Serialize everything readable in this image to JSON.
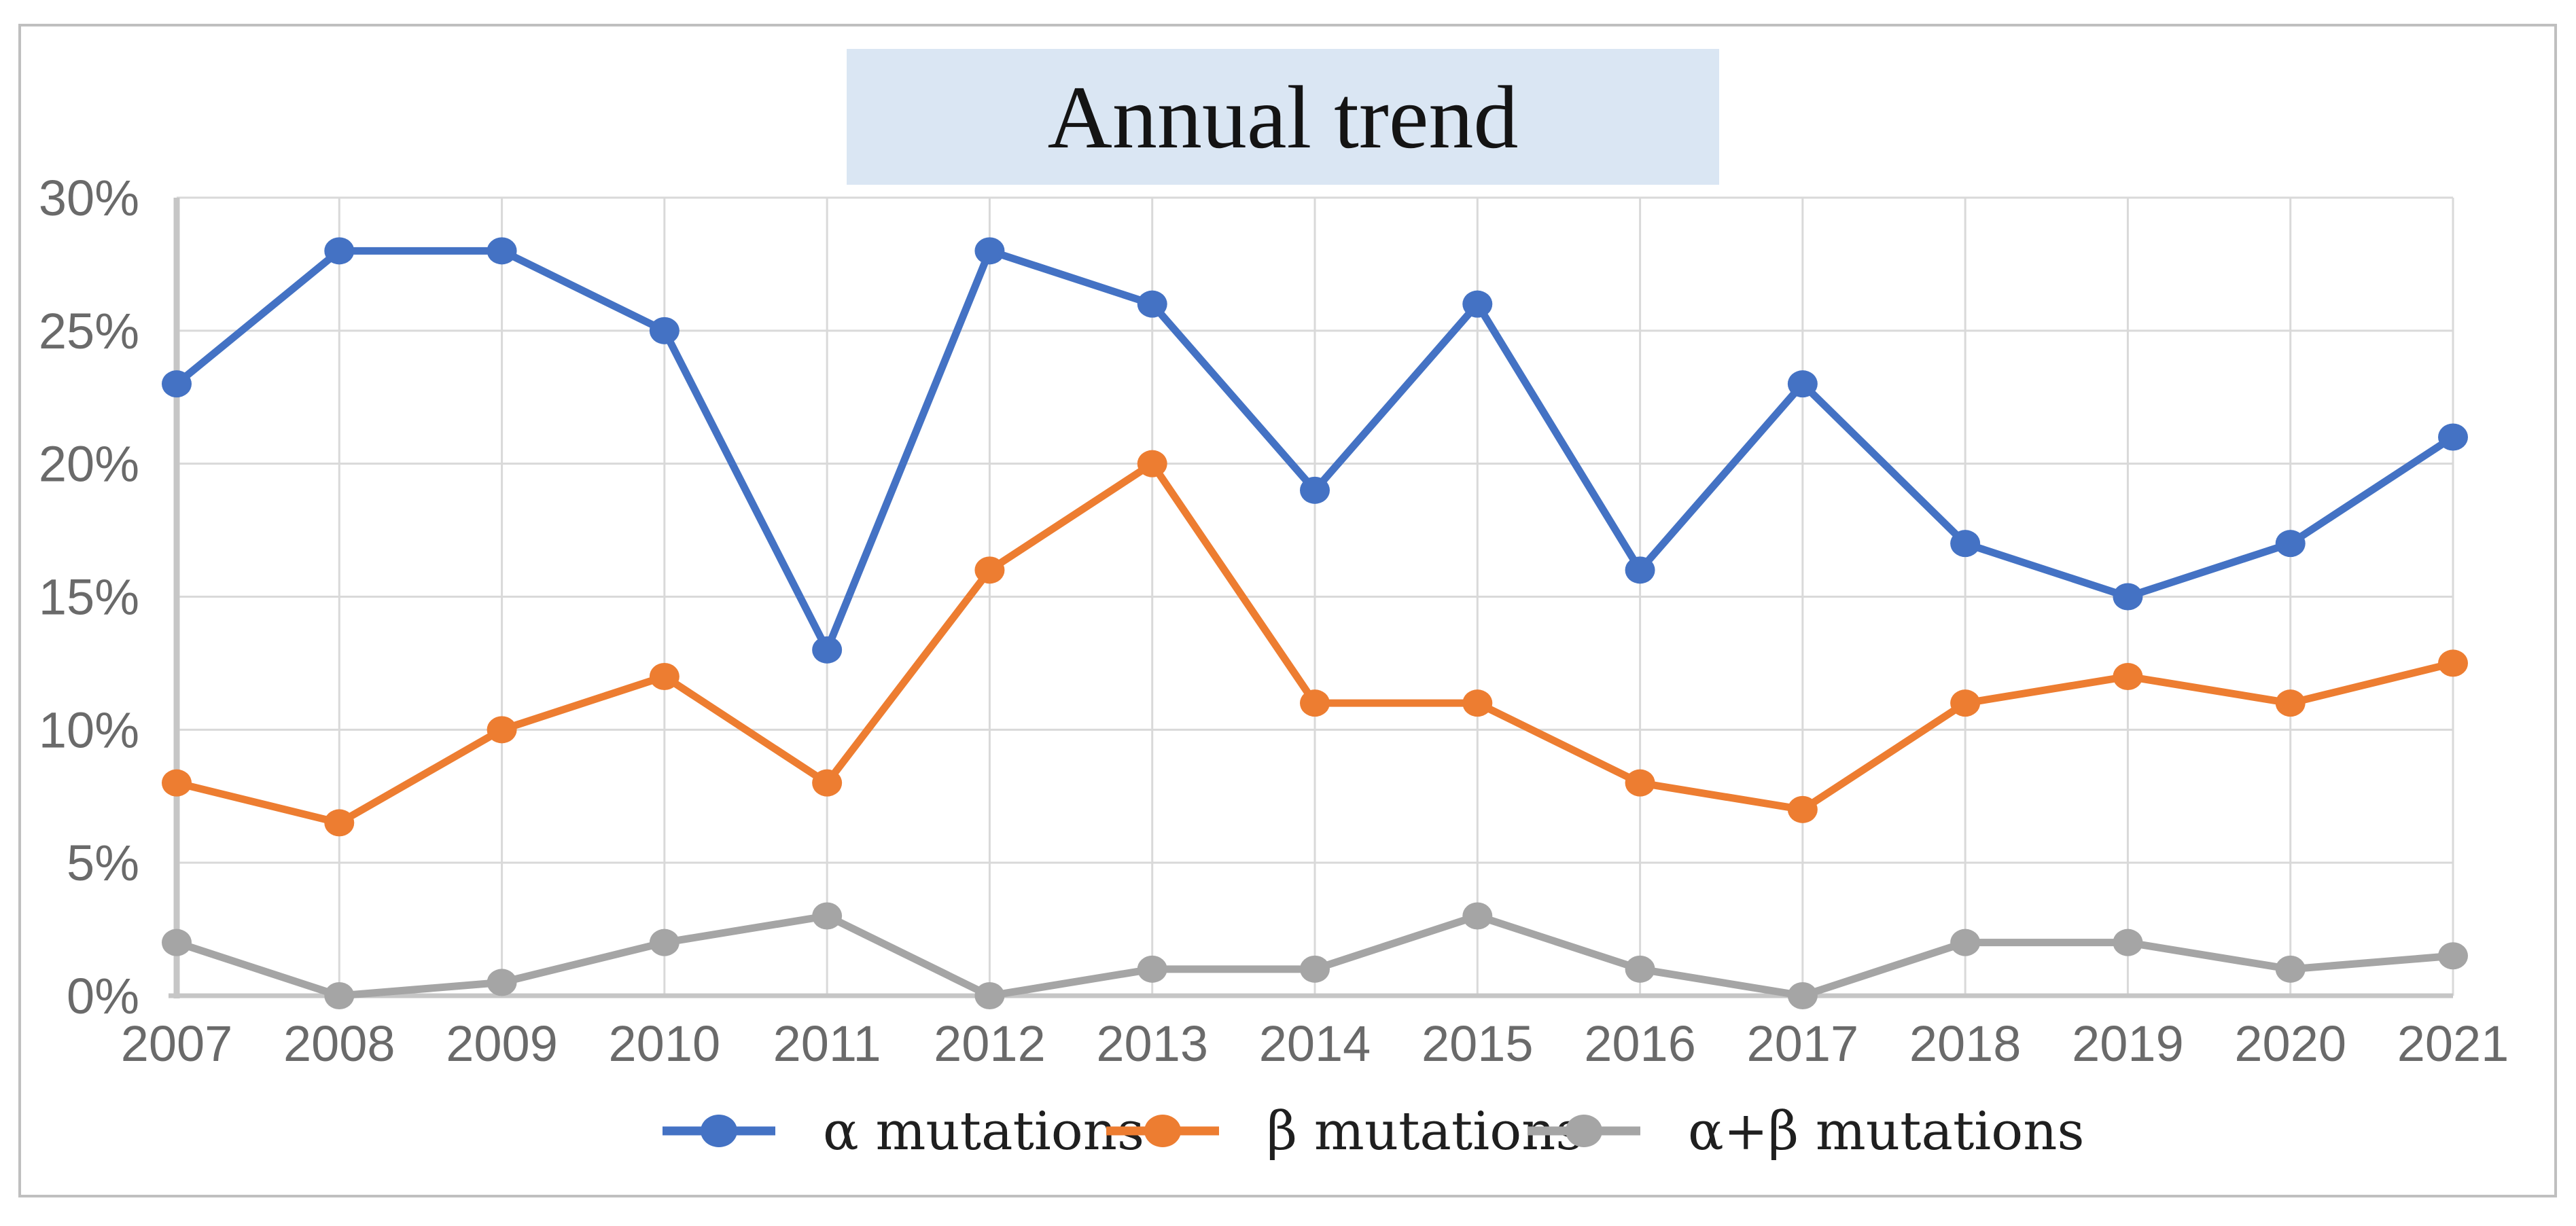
{
  "title": "Annual trend",
  "chart_data": {
    "type": "line",
    "title": "Annual trend",
    "categories": [
      "2007",
      "2008",
      "2009",
      "2010",
      "2011",
      "2012",
      "2013",
      "2014",
      "2015",
      "2016",
      "2017",
      "2018",
      "2019",
      "2020",
      "2021"
    ],
    "series": [
      {
        "key": "alpha-mutations",
        "name": "α mutations",
        "color": "#4472C4",
        "values": [
          23,
          28,
          28,
          25,
          13,
          28,
          26,
          19,
          26,
          16,
          23,
          17,
          15,
          17,
          21
        ]
      },
      {
        "key": "beta-mutations",
        "name": "β mutations",
        "color": "#ED7D31",
        "values": [
          8,
          6.5,
          10,
          12,
          8,
          16,
          20,
          11,
          11,
          8,
          7,
          11,
          12,
          11,
          12.5
        ]
      },
      {
        "key": "alpha-beta-mutations",
        "name": "α+β mutations",
        "color": "#A5A5A5",
        "values": [
          2,
          0,
          0.5,
          2,
          3,
          0,
          1,
          1,
          3,
          1,
          0,
          2,
          2,
          1,
          1.5
        ]
      }
    ],
    "y_ticks": [
      {
        "value": 0,
        "label": "0%"
      },
      {
        "value": 5,
        "label": "5%"
      },
      {
        "value": 10,
        "label": "10%"
      },
      {
        "value": 15,
        "label": "15%"
      },
      {
        "value": 20,
        "label": "20%"
      },
      {
        "value": 25,
        "label": "25%"
      },
      {
        "value": 30,
        "label": "30%"
      }
    ],
    "ylim": [
      0,
      30
    ],
    "grid": true,
    "legend_position": "bottom",
    "styles": {
      "background": "#FFFFFF",
      "title_bg": "#DAE6F3",
      "grid_color": "#D9D9D9",
      "axis_color": "#C6C6C6",
      "tick_color": "#6A6A6A",
      "legend_text_color": "#1F1F1F",
      "border_color": "#BFBFBF"
    }
  }
}
